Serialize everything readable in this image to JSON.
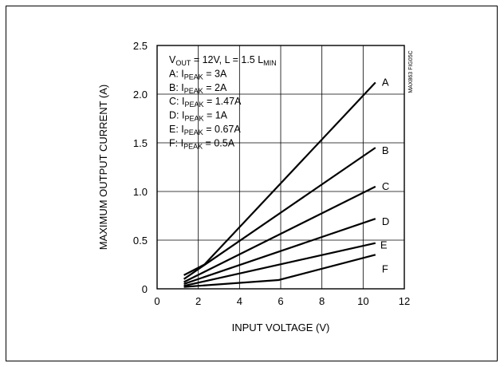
{
  "chart_data": {
    "type": "line",
    "xlabel": "INPUT VOLTAGE (V)",
    "ylabel": "MAXIMUM OUTPUT CURRENT (A)",
    "xlim": [
      0,
      12
    ],
    "ylim": [
      0,
      2.5
    ],
    "x_ticks": [
      "0",
      "2",
      "4",
      "6",
      "8",
      "10",
      "12"
    ],
    "y_ticks": [
      "0",
      "0.5",
      "1.0",
      "1.5",
      "2.0",
      "2.5"
    ],
    "grid": true,
    "figure_id": "MAX863 FIG05C",
    "legend": [
      {
        "pre": "V",
        "sub": "OUT",
        "post": " = 12V, L = 1.5 L",
        "sub2": "MIN"
      },
      {
        "pre": "A: I",
        "sub": "PEAK",
        "post": " = 3A"
      },
      {
        "pre": "B: I",
        "sub": "PEAK",
        "post": " = 2A"
      },
      {
        "pre": "C: I",
        "sub": "PEAK",
        "post": " = 1.47A"
      },
      {
        "pre": "D: I",
        "sub": "PEAK",
        "post": " = 1A"
      },
      {
        "pre": "E: I",
        "sub": "PEAK",
        "post": " = 0.67A"
      },
      {
        "pre": "F: I",
        "sub": "PEAK",
        "post": " = 0.5A"
      }
    ],
    "series": [
      {
        "name": "A",
        "x": [
          1.3,
          2.3,
          10.6
        ],
        "y": [
          0.14,
          0.25,
          2.12
        ]
      },
      {
        "name": "B",
        "x": [
          1.3,
          10.6
        ],
        "y": [
          0.1,
          1.45
        ]
      },
      {
        "name": "C",
        "x": [
          1.3,
          10.6
        ],
        "y": [
          0.07,
          1.05
        ]
      },
      {
        "name": "D",
        "x": [
          1.3,
          10.6
        ],
        "y": [
          0.05,
          0.72
        ]
      },
      {
        "name": "E",
        "x": [
          1.3,
          10.6
        ],
        "y": [
          0.03,
          0.47
        ]
      },
      {
        "name": "F",
        "x": [
          1.3,
          5.9,
          10.6
        ],
        "y": [
          0.02,
          0.09,
          0.35
        ]
      }
    ]
  }
}
